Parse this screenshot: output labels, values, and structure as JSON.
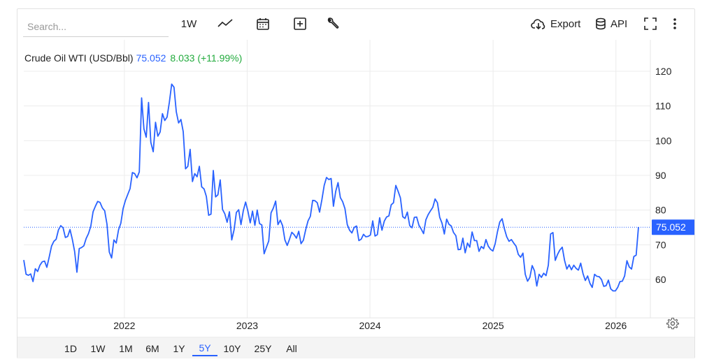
{
  "toolbar": {
    "search_placeholder": "Search...",
    "interval_label": "1W",
    "export_label": "Export",
    "api_label": "API"
  },
  "legend": {
    "name": "Crude Oil WTI (USD/Bbl)",
    "last": "75.052",
    "change": "8.033 (+11.99%)"
  },
  "colors": {
    "line": "#2962ff",
    "positive": "#22ab3d",
    "grid": "#ececec"
  },
  "ranges": [
    "1D",
    "1W",
    "1M",
    "6M",
    "1Y",
    "5Y",
    "10Y",
    "25Y",
    "All"
  ],
  "active_range": "5Y",
  "chart_data": {
    "type": "line",
    "ylim": [
      50,
      130
    ],
    "yticks": [
      "60",
      "70",
      "80",
      "90",
      "100",
      "110",
      "120"
    ],
    "xticks": [
      "2022",
      "2023",
      "2024",
      "2025",
      "2026"
    ],
    "last_value_label": "75.052",
    "last_value": 75.052,
    "x_start": "2021-03-08",
    "x_end": "2026-03-09",
    "series": [
      {
        "values": [
          65.6,
          61.5,
          61.2,
          61.6,
          59.4,
          63.1,
          62.3,
          64.1,
          65.1,
          65.3,
          63.5,
          66.4,
          69.6,
          71.0,
          71.6,
          74.3,
          75.5,
          74.9,
          72.1,
          72.4,
          74.4,
          71.6,
          68.1,
          62.1,
          68.9,
          69.2,
          69.7,
          71.8,
          73.2,
          75.3,
          79.5,
          81.1,
          82.5,
          82.2,
          80.6,
          79.8,
          75.9,
          67.9,
          66.2,
          71.4,
          70.5,
          74.3,
          76.2,
          80.5,
          82.8,
          84.5,
          86.2,
          90.8,
          90.5,
          89.3,
          91.0,
          112.3,
          103.4,
          101.0,
          111.0,
          99.5,
          96.8,
          105.3,
          101.3,
          102.5,
          107.8,
          105.8,
          106.8,
          111.1,
          116.3,
          115.4,
          108.3,
          105.1,
          106.1,
          102.6,
          91.9,
          92.6,
          97.5,
          88.2,
          90.5,
          89.6,
          92.6,
          86.7,
          86.1,
          83.9,
          78.5,
          78.8,
          91.4,
          83.8,
          84.4,
          88.7,
          80.2,
          78.9,
          76.5,
          79.5,
          71.4,
          74.3,
          79.3,
          80.1,
          75.8,
          79.8,
          82.3,
          79.7,
          76.3,
          79.7,
          75.6,
          80.0,
          76.1,
          75.7,
          67.4,
          69.3,
          71.1,
          79.2,
          80.6,
          82.6,
          75.8,
          77.1,
          75.5,
          71.4,
          69.8,
          71.6,
          73.6,
          72.9,
          71.9,
          73.9,
          70.3,
          71.3,
          74.4,
          76.9,
          78.2,
          82.8,
          82.7,
          82.1,
          79.4,
          83.0,
          87.1,
          89.4,
          88.8,
          89.1,
          81.1,
          85.4,
          87.9,
          83.6,
          82.4,
          80.4,
          75.8,
          74.2,
          73.4,
          75.0,
          75.4,
          71.2,
          71.6,
          73.0,
          72.3,
          72.4,
          72.8,
          76.9,
          72.5,
          72.9,
          77.8,
          74.2,
          76.8,
          78.0,
          78.3,
          81.5,
          82.1,
          87.1,
          85.4,
          83.5,
          78.1,
          77.6,
          79.4,
          75.5,
          74.9,
          77.9,
          78.0,
          75.6,
          74.5,
          73.2,
          77.2,
          78.7,
          79.8,
          80.8,
          83.2,
          82.1,
          77.9,
          76.2,
          73.1,
          77.4,
          75.9,
          75.4,
          73.5,
          72.6,
          68.6,
          68.7,
          71.9,
          67.7,
          70.5,
          69.3,
          73.7,
          71.2,
          71.2,
          68.1,
          69.5,
          68.9,
          71.5,
          69.6,
          68.7,
          68.2,
          70.3,
          73.8,
          76.6,
          77.5,
          74.6,
          72.3,
          71.0,
          71.5,
          70.5,
          69.6,
          67.2,
          66.4,
          67.6,
          61.5,
          59.5,
          60.6,
          64.0,
          62.5,
          58.1,
          61.5,
          60.6,
          61.8,
          61.1,
          64.1,
          73.1,
          73.5,
          65.5,
          67.2,
          68.5,
          69.3,
          65.5,
          63.0,
          64.2,
          62.8,
          64.1,
          63.2,
          62.7,
          64.7,
          61.7,
          59.7,
          61.0,
          58.9,
          57.7,
          61.5,
          60.9,
          60.8,
          60.0,
          58.0,
          58.2,
          59.8,
          57.3,
          56.7,
          56.7,
          57.7,
          59.4,
          59.5,
          61.0,
          65.4,
          63.6,
          63.0,
          66.6,
          67.0,
          75.1
        ]
      }
    ]
  }
}
